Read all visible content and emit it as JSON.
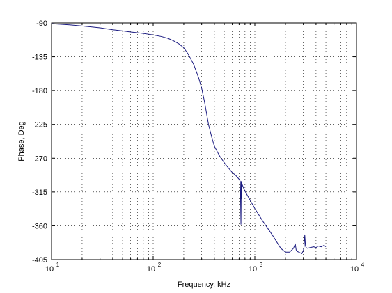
{
  "chart_data": {
    "type": "line",
    "title": "",
    "xlabel": "Frequency, kHz",
    "ylabel": "Phase, Deg",
    "xscale": "log",
    "xlim": [
      10,
      10000
    ],
    "ylim": [
      -405,
      -90
    ],
    "grid": true,
    "grid_style": "dotted",
    "line_color": "#1a1a80",
    "x_ticks": [
      {
        "base": "10",
        "exp": "1"
      },
      {
        "base": "10",
        "exp": "2"
      },
      {
        "base": "10",
        "exp": "3"
      },
      {
        "base": "10",
        "exp": "4"
      }
    ],
    "y_ticks": [
      "-90",
      "-135",
      "-180",
      "-225",
      "-270",
      "-315",
      "-360",
      "-405"
    ],
    "series": [
      {
        "name": "",
        "x": [
          10,
          15,
          20,
          30,
          40,
          50,
          60,
          70,
          80,
          90,
          100,
          120,
          140,
          160,
          180,
          200,
          220,
          250,
          280,
          300,
          320,
          350,
          380,
          400,
          450,
          500,
          550,
          600,
          650,
          700,
          720,
          730,
          735,
          740,
          745,
          750,
          760,
          800,
          900,
          1000,
          1200,
          1500,
          1800,
          2000,
          2200,
          2400,
          2500,
          2550,
          2600,
          2700,
          2800,
          2900,
          3000,
          3050,
          3100,
          3150,
          3200,
          3300,
          3500,
          3800,
          4000,
          4200,
          4500,
          4800,
          5000
        ],
        "y": [
          -91,
          -92.5,
          -94,
          -96.5,
          -99,
          -100.5,
          -102,
          -103,
          -104,
          -105,
          -106,
          -108,
          -110.5,
          -114,
          -118,
          -123,
          -131,
          -145,
          -163,
          -177,
          -195,
          -225,
          -244,
          -254,
          -267,
          -276,
          -283,
          -289,
          -293,
          -298,
          -301,
          -358,
          -301,
          -324,
          -304,
          -305,
          -307,
          -314,
          -326,
          -337,
          -354,
          -373,
          -390,
          -395,
          -395,
          -390,
          -384,
          -392,
          -394,
          -395,
          -396,
          -397,
          -393,
          -388,
          -372,
          -387,
          -389,
          -390,
          -389,
          -388,
          -389,
          -387,
          -388,
          -386,
          -388
        ]
      }
    ]
  }
}
